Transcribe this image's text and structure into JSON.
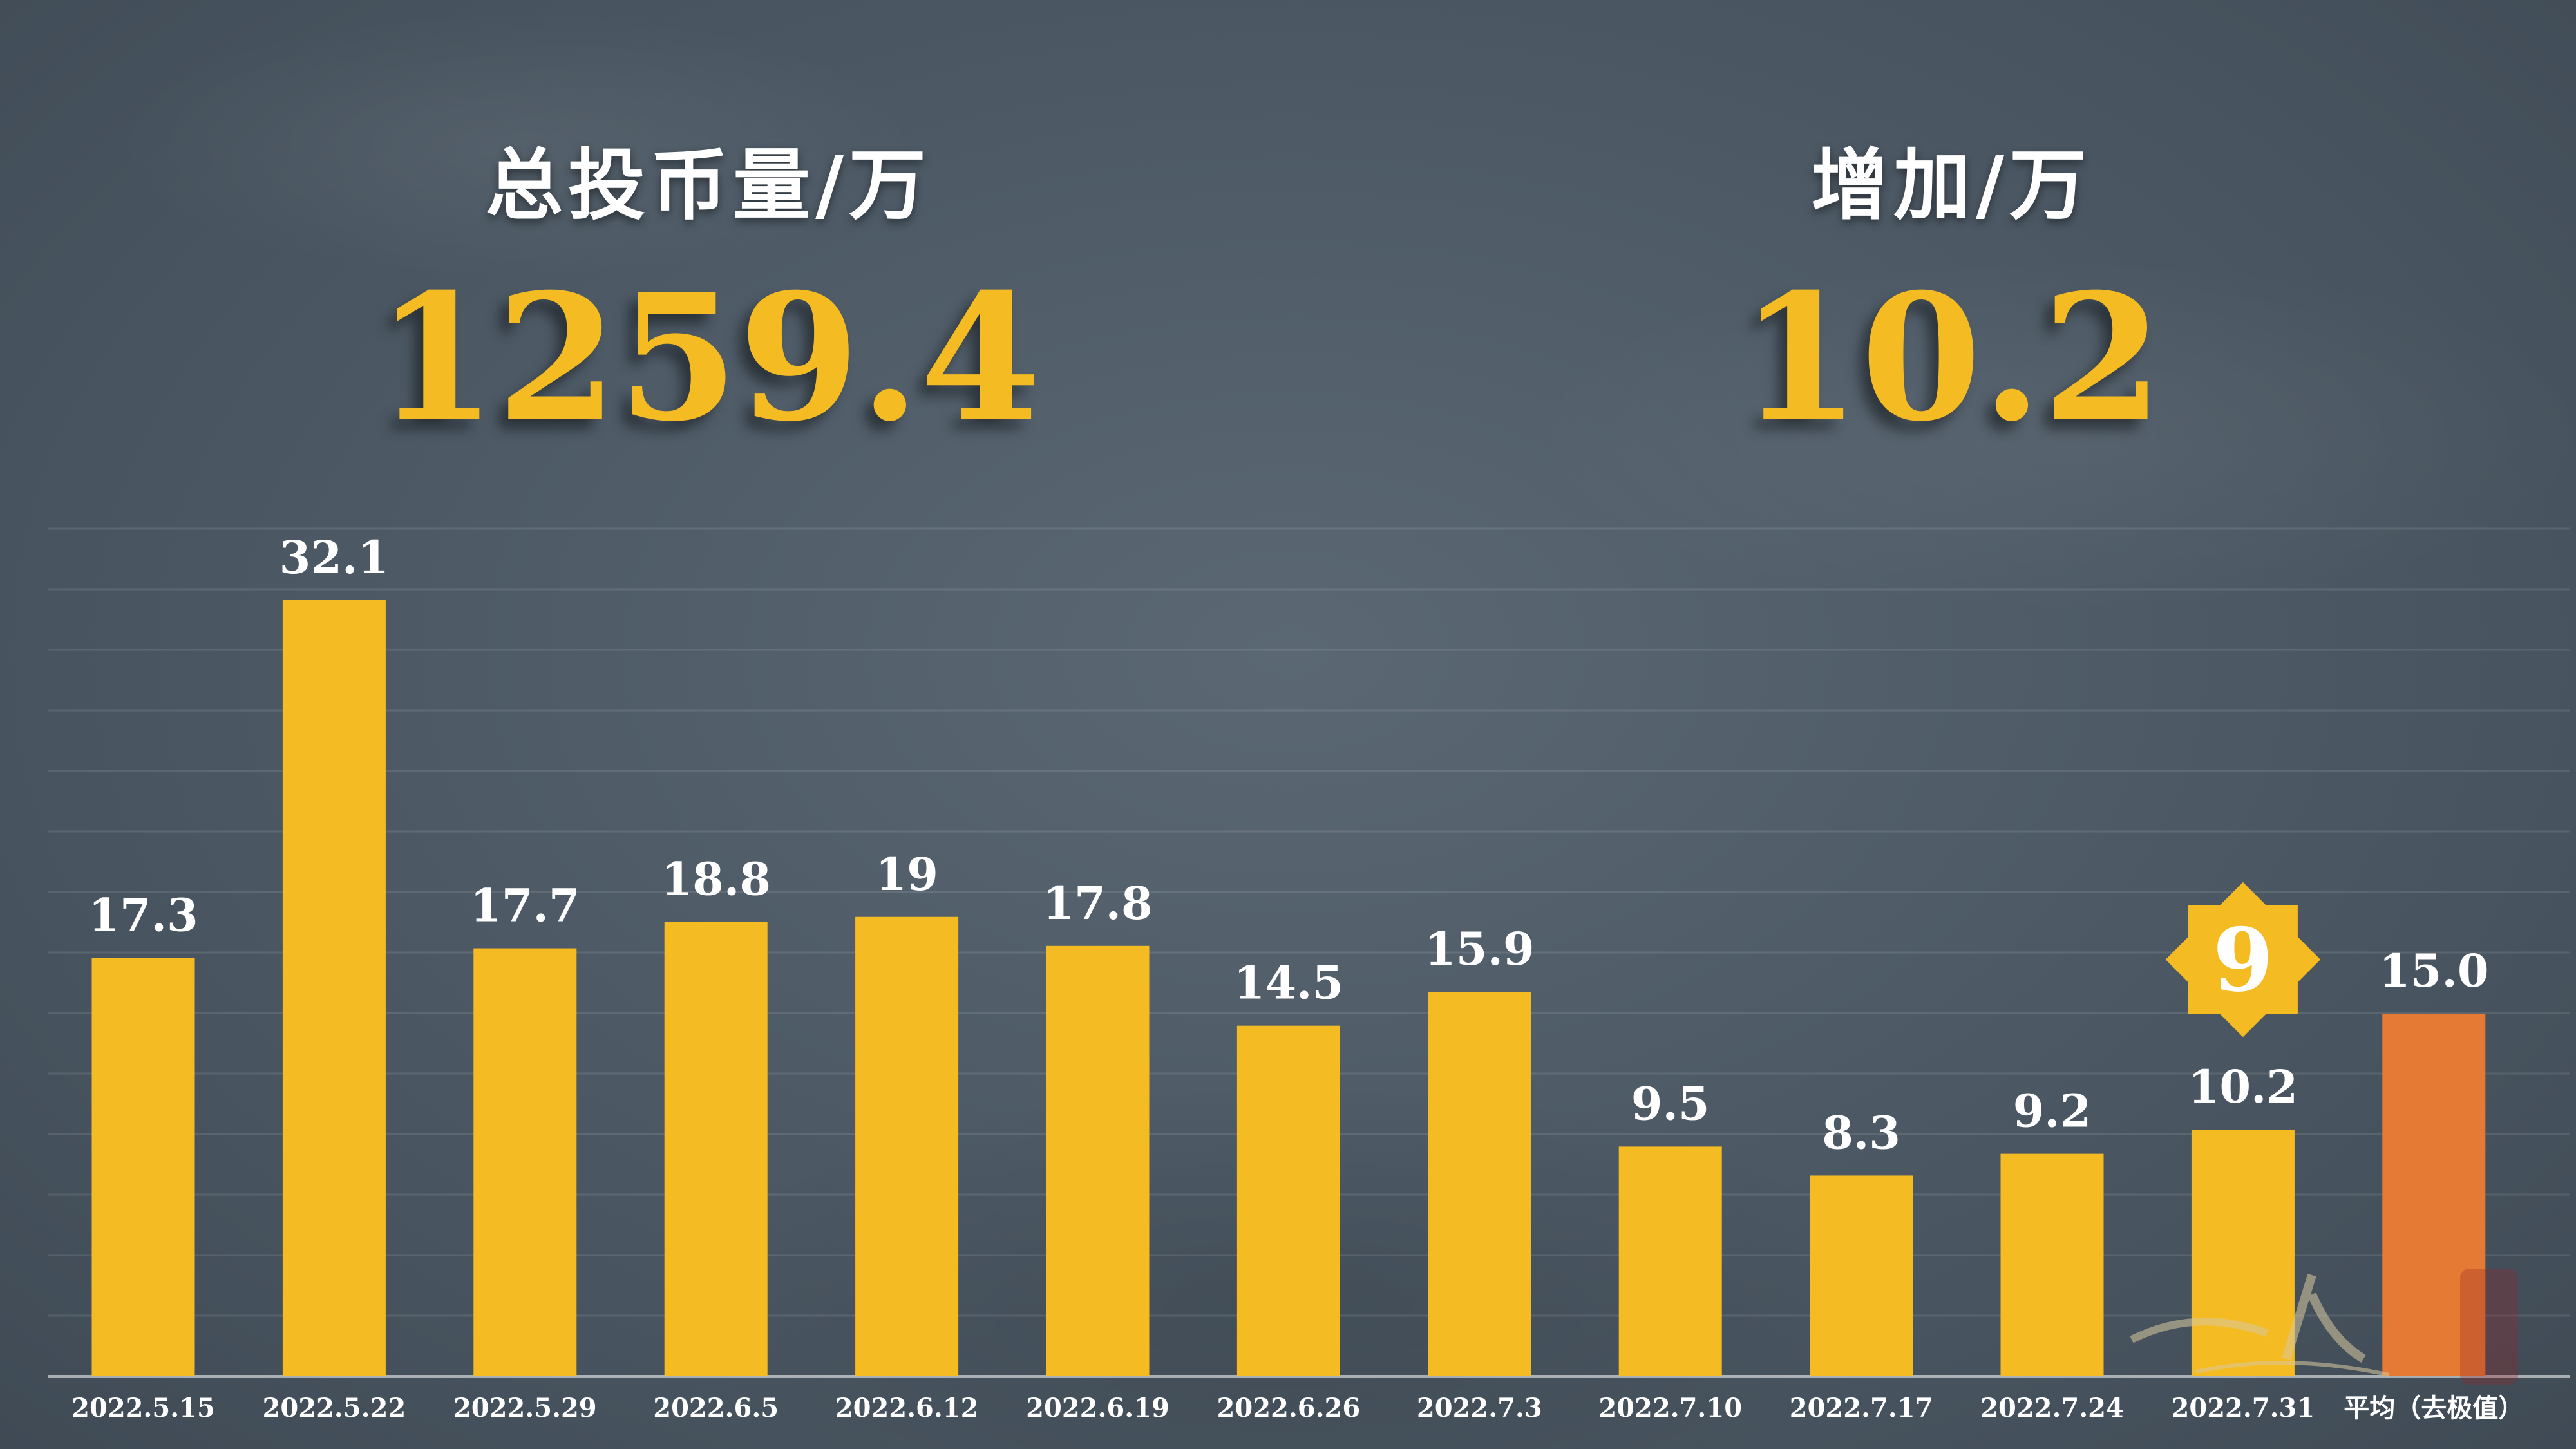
{
  "stats": {
    "total_label": "总投币量/万",
    "total_value": "1259.4",
    "increase_label": "增加/万",
    "increase_value": "10.2"
  },
  "colors": {
    "bar": "#f5bb22",
    "average_bar": "#e47a33",
    "badge": "#f5bb22",
    "text": "#ffffff"
  },
  "chart_data": {
    "type": "bar",
    "title": "",
    "xlabel": "",
    "ylabel": "",
    "ylim": [
      0,
      35
    ],
    "grid": true,
    "categories": [
      "2022.5.15",
      "2022.5.22",
      "2022.5.29",
      "2022.6.5",
      "2022.6.12",
      "2022.6.19",
      "2022.6.26",
      "2022.7.3",
      "2022.7.10",
      "2022.7.17",
      "2022.7.24",
      "2022.7.31",
      "平均（去极值）"
    ],
    "values": [
      17.3,
      32.1,
      17.7,
      18.8,
      19,
      17.8,
      14.5,
      15.9,
      9.5,
      8.3,
      9.2,
      10.2,
      15.0
    ],
    "value_labels": [
      "17.3",
      "32.1",
      "17.7",
      "18.8",
      "19",
      "17.8",
      "14.5",
      "15.9",
      "9.5",
      "8.3",
      "9.2",
      "10.2",
      "15.0"
    ],
    "highlight": {
      "category": "平均（去极值）",
      "color": "#e47a33"
    },
    "badge": {
      "category": "2022.7.31",
      "text": "9",
      "shape": "eight-point-star"
    }
  }
}
